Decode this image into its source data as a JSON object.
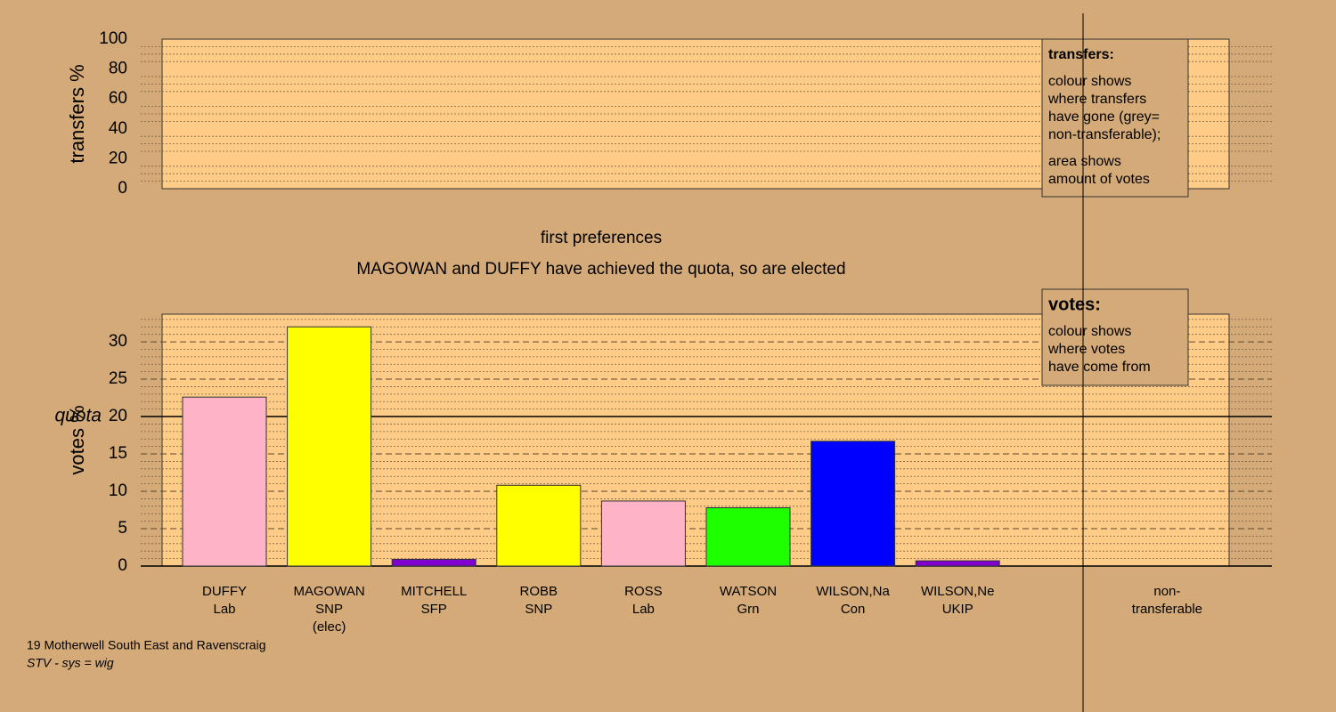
{
  "chart_data": [
    {
      "type": "bar",
      "ylabel": "transfers %",
      "ylim": [
        0,
        100
      ],
      "yticks": [
        0,
        20,
        40,
        60,
        80,
        100
      ],
      "minor_grid_step": 5,
      "legend": {
        "title": "transfers:",
        "paragraphs": [
          [
            "colour shows",
            "where transfers",
            "have gone (grey=",
            "non-transferable);"
          ],
          [
            "area shows",
            "amount of votes"
          ]
        ]
      }
    },
    {
      "type": "bar",
      "title": "first preferences",
      "subtitle": "MAGOWAN and DUFFY have achieved the quota, so are elected",
      "ylabel": "votes %",
      "categories": [
        [
          "DUFFY",
          "Lab"
        ],
        [
          "MAGOWAN",
          "SNP",
          "(elec)"
        ],
        [
          "MITCHELL",
          "SFP"
        ],
        [
          "ROBB",
          "SNP"
        ],
        [
          "ROSS",
          "Lab"
        ],
        [
          "WATSON",
          "Grn"
        ],
        [
          "WILSON,Na",
          "Con"
        ],
        [
          "WILSON,Ne",
          "UKIP"
        ],
        null,
        [
          "non-",
          "transferable"
        ]
      ],
      "values": [
        22.6,
        32.0,
        0.9,
        10.8,
        8.7,
        7.8,
        16.7,
        0.7,
        null,
        null
      ],
      "colors": [
        "#ffb3c6",
        "#ffff00",
        "#8000d0",
        "#ffff00",
        "#ffb3c6",
        "#1eff00",
        "#0000ff",
        "#8000d0",
        null,
        null
      ],
      "ylim": [
        0,
        33.7
      ],
      "yticks": [
        0,
        5,
        10,
        15,
        20,
        25,
        30
      ],
      "minor_grid_step": 1,
      "quota_line": {
        "value": 20,
        "label": "quota"
      },
      "legend": {
        "title": "votes:",
        "paragraphs": [
          [
            "colour shows",
            "where votes",
            "have come from"
          ]
        ]
      }
    }
  ],
  "footer": {
    "lines": [
      "19 Motherwell South East and Ravenscraig",
      "STV - sys = wig"
    ]
  }
}
